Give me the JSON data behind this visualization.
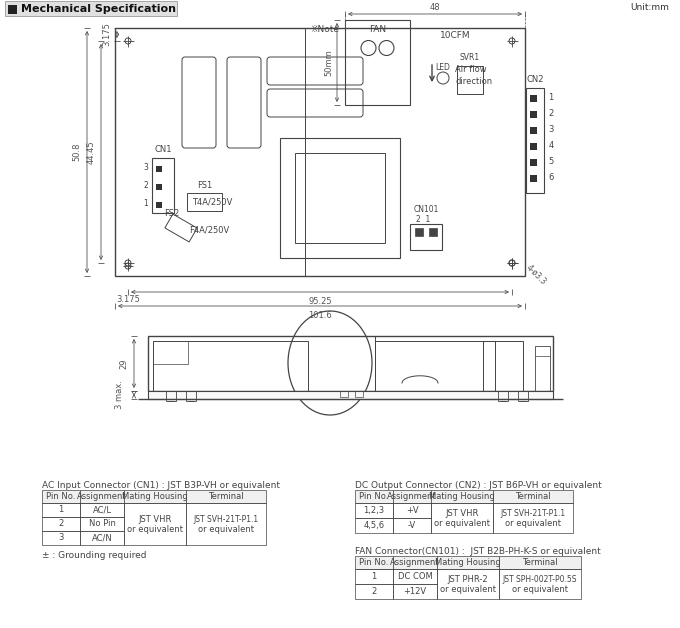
{
  "title": "Mechanical Specification",
  "unit": "Unit:mm",
  "bg_color": "#ffffff",
  "lc": "#444444",
  "dc": "#555555",
  "ac_table": {
    "title": "AC Input Connector (CN1) : JST B3P-VH or equivalent",
    "headers": [
      "Pin No.",
      "Assignment",
      "Mating Housing",
      "Terminal"
    ],
    "rows": [
      [
        "1",
        "AC/L",
        "JST VHR",
        "JST SVH-21T-P1.1"
      ],
      [
        "2",
        "No Pin",
        "or equivalent",
        "or equivalent"
      ],
      [
        "3",
        "AC/N",
        "",
        ""
      ]
    ],
    "note": "± : Grounding required"
  },
  "dc_table": {
    "title": "DC Output Connector (CN2) : JST B6P-VH or equivalent",
    "headers": [
      "Pin No.",
      "Assignment",
      "Mating Housing",
      "Terminal"
    ],
    "rows": [
      [
        "1,2,3",
        "+V",
        "JST VHR",
        "JST SVH-21T-P1.1"
      ],
      [
        "4,5,6",
        "-V",
        "or equivalent",
        "or equivalent"
      ]
    ]
  },
  "fan_table": {
    "title": "FAN Connector(CN101) :  JST B2B-PH-K-S or equivalent",
    "headers": [
      "Pin No.",
      "Assignment",
      "Mating Housing",
      "Terminal"
    ],
    "rows": [
      [
        "1",
        "DC COM",
        "JST PHR-2",
        "JST SPH-002T-P0.5S"
      ],
      [
        "2",
        "+12V",
        "or equivalent",
        "or equivalent"
      ]
    ]
  }
}
